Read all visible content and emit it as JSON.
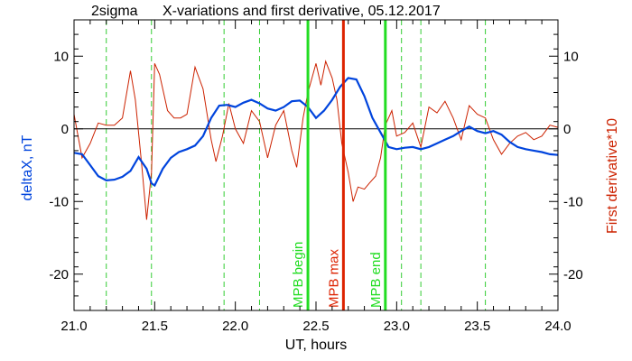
{
  "chart_data": {
    "type": "line",
    "title_left": "2sigma",
    "title": "X-variations and first derivative, 05.12.2017",
    "xlabel": "UT, hours",
    "ylabel_left": "deltaX, nT",
    "ylabel_right": "First derivative*10",
    "xlim": [
      21.0,
      24.0
    ],
    "ylim": [
      -25,
      15
    ],
    "x_ticks": [
      "21.0",
      "21.5",
      "22.0",
      "22.5",
      "23.0",
      "23.5",
      "24.0"
    ],
    "y_ticks_left": [
      "10",
      "0",
      "-10",
      "-20"
    ],
    "y_ticks_right": [
      "10",
      "0",
      "-10",
      "-20"
    ],
    "colors": {
      "deltaX": "#0044dd",
      "derivative": "#cc2200",
      "mpb_begin": "#22dd22",
      "mpb_max": "#dd2200",
      "mpb_end": "#22dd22",
      "dashed": "#33cc33",
      "frame": "#000000"
    },
    "dashed_lines_x": [
      21.2,
      21.48,
      21.93,
      22.15,
      23.03,
      23.15,
      23.55
    ],
    "markers": [
      {
        "x": 22.45,
        "label": "MPB begin",
        "color": "#22dd22"
      },
      {
        "x": 22.67,
        "label": "MPB max",
        "color": "#dd2200"
      },
      {
        "x": 22.93,
        "label": "MPB end",
        "color": "#22dd22"
      }
    ],
    "series": [
      {
        "name": "deltaX, nT",
        "color": "#0044dd",
        "x": [
          21.0,
          21.05,
          21.1,
          21.15,
          21.2,
          21.25,
          21.3,
          21.35,
          21.4,
          21.45,
          21.48,
          21.5,
          21.55,
          21.6,
          21.65,
          21.7,
          21.75,
          21.8,
          21.85,
          21.9,
          21.95,
          22.0,
          22.05,
          22.1,
          22.15,
          22.2,
          22.25,
          22.3,
          22.35,
          22.4,
          22.45,
          22.5,
          22.55,
          22.6,
          22.65,
          22.7,
          22.75,
          22.8,
          22.85,
          22.9,
          22.95,
          23.0,
          23.05,
          23.1,
          23.15,
          23.2,
          23.25,
          23.3,
          23.35,
          23.4,
          23.45,
          23.5,
          23.55,
          23.6,
          23.65,
          23.7,
          23.75,
          23.8,
          23.85,
          23.9,
          23.95,
          24.0
        ],
        "values": [
          -3.3,
          -3.5,
          -5.0,
          -6.5,
          -7.1,
          -7.0,
          -6.6,
          -5.8,
          -3.9,
          -5.5,
          -7.5,
          -7.8,
          -5.5,
          -4.0,
          -3.2,
          -2.8,
          -2.3,
          -1.0,
          1.5,
          3.2,
          3.3,
          3.0,
          3.6,
          4.0,
          3.5,
          2.8,
          2.5,
          3.0,
          3.8,
          3.9,
          3.0,
          1.5,
          2.5,
          4.0,
          5.8,
          7.0,
          6.8,
          4.5,
          1.5,
          -0.5,
          -2.5,
          -2.8,
          -2.6,
          -2.5,
          -2.8,
          -2.5,
          -2.0,
          -1.5,
          -1.0,
          -0.3,
          0.3,
          -0.3,
          -0.6,
          -0.3,
          -0.8,
          -1.8,
          -2.5,
          -2.8,
          -3.0,
          -3.2,
          -3.5,
          -3.6
        ]
      },
      {
        "name": "First derivative*10",
        "color": "#cc2200",
        "x": [
          21.0,
          21.05,
          21.1,
          21.15,
          21.2,
          21.25,
          21.3,
          21.35,
          21.38,
          21.42,
          21.45,
          21.48,
          21.5,
          21.53,
          21.58,
          21.62,
          21.66,
          21.7,
          21.75,
          21.8,
          21.85,
          21.88,
          21.92,
          21.96,
          22.0,
          22.05,
          22.1,
          22.15,
          22.2,
          22.25,
          22.3,
          22.35,
          22.38,
          22.42,
          22.45,
          22.5,
          22.53,
          22.56,
          22.6,
          22.63,
          22.66,
          22.7,
          22.73,
          22.76,
          22.8,
          22.83,
          22.87,
          22.9,
          22.93,
          22.97,
          23.0,
          23.05,
          23.1,
          23.15,
          23.2,
          23.25,
          23.3,
          23.35,
          23.4,
          23.45,
          23.5,
          23.55,
          23.6,
          23.65,
          23.7,
          23.75,
          23.8,
          23.85,
          23.9,
          23.95,
          24.0
        ],
        "values": [
          2.0,
          -4.0,
          -2.0,
          0.8,
          0.5,
          0.5,
          1.5,
          8.0,
          4.0,
          -5.0,
          -12.5,
          -6.0,
          9.0,
          7.5,
          2.5,
          1.5,
          1.5,
          2.0,
          8.5,
          5.5,
          -1.5,
          -4.5,
          -1.0,
          3.5,
          0.0,
          -2.0,
          2.5,
          1.0,
          -4.0,
          0.5,
          2.5,
          -3.0,
          -5.3,
          1.5,
          5.0,
          9.0,
          6.0,
          9.3,
          7.0,
          4.0,
          -2.0,
          -6.0,
          -10.0,
          -8.0,
          -8.3,
          -7.5,
          -6.5,
          -4.0,
          0.5,
          2.5,
          -1.0,
          -0.5,
          0.8,
          -2.5,
          3.0,
          2.2,
          3.8,
          1.5,
          -1.5,
          3.2,
          2.0,
          1.5,
          -1.5,
          -3.5,
          -2.0,
          -1.0,
          -0.5,
          -1.5,
          -1.0,
          0.5,
          0.2
        ]
      }
    ]
  }
}
